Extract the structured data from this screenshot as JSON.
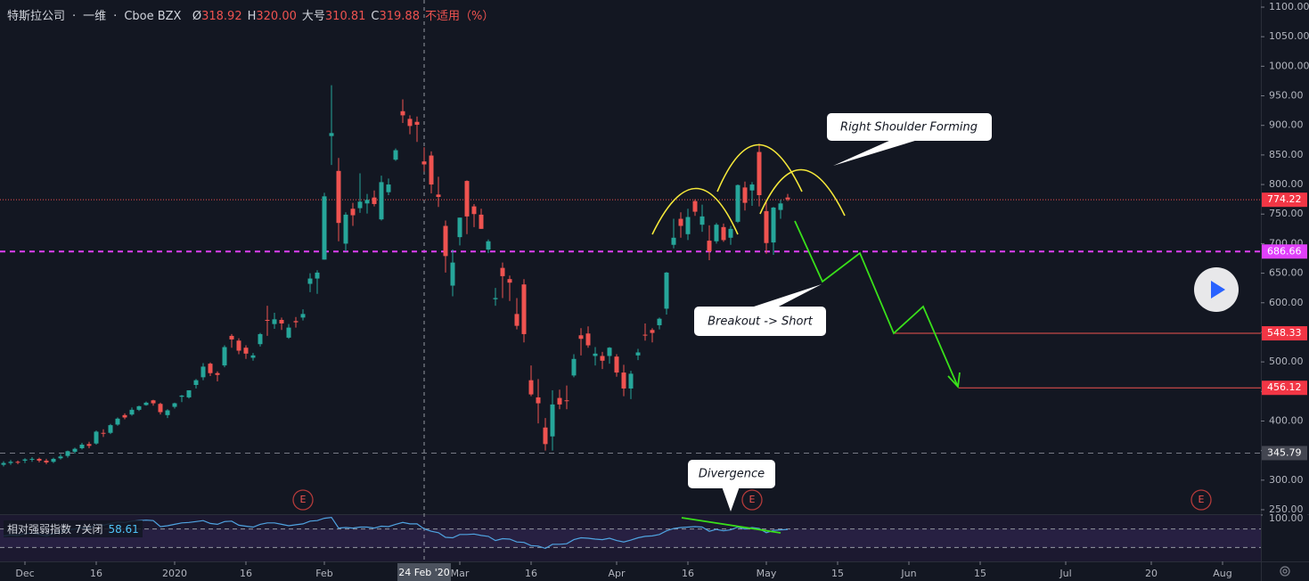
{
  "header": {
    "symbol": "特斯拉公司",
    "interval": "一维",
    "exchange": "Cboe BZX",
    "o_label": "Ø",
    "o": "318.92",
    "h_label": "H",
    "h": "320.00",
    "l_label": "大号",
    "l": "310.81",
    "c_label": "C",
    "c": "319.88",
    "change": "不适用（%）"
  },
  "chart_data": {
    "type": "candlestick",
    "up_color": "#26a69a",
    "down_color": "#ef5350",
    "ylim": [
      250,
      1100
    ],
    "yticks": [
      {
        "value": 1100,
        "label": "1100.00"
      },
      {
        "value": 1050,
        "label": "1050.00"
      },
      {
        "value": 1000,
        "label": "1000.00"
      },
      {
        "value": 950,
        "label": "950.00"
      },
      {
        "value": 900,
        "label": "900.00"
      },
      {
        "value": 850,
        "label": "850.00"
      },
      {
        "value": 800,
        "label": "800.00"
      },
      {
        "value": 750,
        "label": "750.00"
      },
      {
        "value": 700,
        "label": "700.00"
      },
      {
        "value": 650,
        "label": "650.00"
      },
      {
        "value": 600,
        "label": "600.00"
      },
      {
        "value": 550,
        "label": "550.00"
      },
      {
        "value": 500,
        "label": "500.00"
      },
      {
        "value": 450,
        "label": "450.00"
      },
      {
        "value": 400,
        "label": "400.00"
      },
      {
        "value": 350,
        "label": "350.00"
      },
      {
        "value": 300,
        "label": "300.00"
      },
      {
        "value": 250,
        "label": "250.00"
      }
    ],
    "xlim": [
      -0.5,
      176.375
    ],
    "xticks": [
      {
        "value": 3,
        "label": "Dec"
      },
      {
        "value": 13,
        "label": "16"
      },
      {
        "value": 24,
        "label": "2020"
      },
      {
        "value": 34,
        "label": "16"
      },
      {
        "value": 45,
        "label": "Feb"
      },
      {
        "value": 64,
        "label": "Mar"
      },
      {
        "value": 74,
        "label": "16"
      },
      {
        "value": 86,
        "label": "Apr"
      },
      {
        "value": 96,
        "label": "16"
      },
      {
        "value": 107,
        "label": "May"
      },
      {
        "value": 117,
        "label": "15"
      },
      {
        "value": 127,
        "label": "Jun"
      },
      {
        "value": 137,
        "label": "15"
      },
      {
        "value": 149,
        "label": "Jul"
      },
      {
        "value": 161,
        "label": "20"
      },
      {
        "value": 171,
        "label": "Aug"
      }
    ],
    "crosshair": {
      "value": 59,
      "label": "24 Feb '20"
    },
    "candles": [
      [
        326,
        332,
        323,
        329
      ],
      [
        329,
        334,
        326,
        331
      ],
      [
        331,
        333,
        327,
        330
      ],
      [
        333,
        337,
        329,
        335
      ],
      [
        335,
        339,
        331,
        336
      ],
      [
        336,
        338,
        330,
        333
      ],
      [
        333,
        336,
        327,
        330
      ],
      [
        331,
        338,
        329,
        336
      ],
      [
        337,
        344,
        335,
        340
      ],
      [
        341,
        350,
        338,
        349
      ],
      [
        348,
        355,
        345,
        353
      ],
      [
        354,
        363,
        352,
        360
      ],
      [
        361,
        365,
        354,
        358
      ],
      [
        362,
        384,
        360,
        382
      ],
      [
        380,
        386,
        373,
        379
      ],
      [
        380,
        395,
        378,
        393
      ],
      [
        394,
        406,
        392,
        404
      ],
      [
        410,
        413,
        403,
        406
      ],
      [
        411,
        423,
        409,
        419
      ],
      [
        419,
        426,
        417,
        425
      ],
      [
        427,
        433,
        426,
        431
      ],
      [
        435,
        436,
        426,
        430
      ],
      [
        429,
        431,
        411,
        415
      ],
      [
        410,
        420,
        405,
        418
      ],
      [
        424,
        431,
        421,
        430
      ],
      [
        441,
        444,
        432,
        443
      ],
      [
        440,
        452,
        438,
        452
      ],
      [
        461,
        471,
        455,
        469
      ],
      [
        474,
        498,
        469,
        492
      ],
      [
        497,
        499,
        476,
        481
      ],
      [
        481,
        484,
        467,
        478
      ],
      [
        494,
        528,
        491,
        525
      ],
      [
        544,
        547,
        524,
        538
      ],
      [
        536,
        540,
        513,
        519
      ],
      [
        524,
        528,
        505,
        514
      ],
      [
        507,
        515,
        502,
        511
      ],
      [
        530,
        549,
        526,
        547
      ],
      [
        571,
        595,
        544,
        570
      ],
      [
        564,
        583,
        556,
        572
      ],
      [
        571,
        575,
        554,
        565
      ],
      [
        541,
        564,
        539,
        558
      ],
      [
        569,
        576,
        558,
        567
      ],
      [
        575,
        589,
        570,
        581
      ],
      [
        632,
        650,
        618,
        641
      ],
      [
        641,
        655,
        615,
        651
      ],
      [
        673,
        786,
        673,
        780
      ],
      [
        882,
        968,
        833,
        887
      ],
      [
        823,
        845,
        704,
        735
      ],
      [
        700,
        753,
        687,
        749
      ],
      [
        759,
        769,
        730,
        748
      ],
      [
        760,
        819,
        752,
        771
      ],
      [
        768,
        784,
        751,
        774
      ],
      [
        778,
        790,
        763,
        767
      ],
      [
        741,
        815,
        739,
        804
      ],
      [
        787,
        810,
        782,
        800
      ],
      [
        842,
        861,
        840,
        858
      ],
      [
        924,
        944,
        904,
        917
      ],
      [
        911,
        917,
        885,
        899
      ],
      [
        906,
        915,
        872,
        901
      ],
      [
        839,
        863,
        822,
        834
      ],
      [
        849,
        856,
        785,
        800
      ],
      [
        783,
        813,
        762,
        779
      ],
      [
        730,
        739,
        651,
        679
      ],
      [
        629,
        690,
        611,
        668
      ],
      [
        711,
        744,
        697,
        744
      ],
      [
        806,
        807,
        716,
        746
      ],
      [
        763,
        767,
        728,
        750
      ],
      [
        749,
        759,
        725,
        725
      ],
      [
        690,
        707,
        684,
        704
      ],
      [
        606,
        625,
        595,
        608
      ],
      [
        659,
        668,
        608,
        645
      ],
      [
        640,
        646,
        603,
        634
      ],
      [
        581,
        608,
        555,
        561
      ],
      [
        631,
        640,
        533,
        547
      ],
      [
        469,
        494,
        442,
        445
      ],
      [
        440,
        471,
        396,
        430
      ],
      [
        389,
        405,
        350,
        361
      ],
      [
        374,
        452,
        350,
        428
      ],
      [
        439,
        453,
        420,
        428
      ],
      [
        435,
        460,
        420,
        434
      ],
      [
        477,
        513,
        474,
        505
      ],
      [
        545,
        557,
        511,
        539
      ],
      [
        548,
        560,
        524,
        528
      ],
      [
        510,
        525,
        494,
        514
      ],
      [
        510,
        517,
        488,
        502
      ],
      [
        510,
        525,
        497,
        524
      ],
      [
        509,
        513,
        475,
        482
      ],
      [
        482,
        495,
        442,
        455
      ],
      [
        455,
        485,
        437,
        480
      ],
      [
        511,
        522,
        503,
        516
      ],
      [
        546,
        565,
        536,
        545
      ],
      [
        554,
        557,
        533,
        549
      ],
      [
        562,
        575,
        555,
        573
      ],
      [
        590,
        652,
        580,
        651
      ],
      [
        698,
        742,
        692,
        710
      ],
      [
        742,
        753,
        710,
        730
      ],
      [
        716,
        759,
        706,
        745
      ],
      [
        772,
        775,
        747,
        754
      ],
      [
        732,
        766,
        720,
        746
      ],
      [
        705,
        731,
        672,
        687
      ],
      [
        704,
        735,
        700,
        732
      ],
      [
        728,
        734,
        703,
        706
      ],
      [
        710,
        730,
        698,
        725
      ],
      [
        737,
        800,
        735,
        799
      ],
      [
        795,
        805,
        756,
        769
      ],
      [
        790,
        804,
        764,
        800
      ],
      [
        855,
        869,
        763,
        782
      ],
      [
        755,
        773,
        683,
        701
      ],
      [
        702,
        762,
        681,
        761
      ],
      [
        757,
        774,
        742,
        768
      ],
      [
        778,
        784,
        772,
        775
      ]
    ],
    "levels": [
      {
        "value": 774.22,
        "color": "#ef5350",
        "style": "dotted",
        "from": -0.5,
        "box": "#f23645"
      },
      {
        "value": 686.66,
        "color": "#e040fb",
        "style": "dashed",
        "from": -0.5,
        "box": "#e040fb"
      },
      {
        "value": 548.33,
        "color": "#ef5350",
        "style": "solid",
        "from": 125,
        "box": "#f23645"
      },
      {
        "value": 456.12,
        "color": "#ef5350",
        "style": "solid",
        "from": 134,
        "box": "#f23645"
      },
      {
        "value": 345.79,
        "color": "#787b86",
        "style": "dashed",
        "from": -0.5,
        "box": "#434651"
      }
    ],
    "events": [
      {
        "x": 42,
        "label": "E"
      },
      {
        "x": 105,
        "label": "E"
      },
      {
        "x": 168,
        "label": "E"
      }
    ],
    "annotations": [
      "Right Shoulder Forming",
      "Breakout -> Short",
      "Divergence"
    ],
    "rsi": {
      "name": "相对强弱指数 7关闭",
      "last": 58.61,
      "color": "#4fa3e0",
      "ylim": [
        0,
        100
      ],
      "yticks": [
        {
          "value": 100,
          "label": "100.00"
        }
      ],
      "bands": [
        30,
        70
      ],
      "values": [
        55,
        57,
        56,
        60,
        61,
        58,
        55,
        60,
        63,
        68,
        70,
        73,
        71,
        80,
        78,
        82,
        85,
        84,
        87,
        88,
        89,
        88,
        75,
        77,
        80,
        83,
        84,
        86,
        88,
        82,
        80,
        86,
        87,
        78,
        76,
        74,
        80,
        83,
        83,
        80,
        77,
        79,
        81,
        87,
        88,
        93,
        95,
        72,
        73,
        72,
        74,
        74,
        72,
        76,
        75,
        80,
        84,
        81,
        81,
        70,
        65,
        62,
        52,
        51,
        58,
        58,
        59,
        56,
        54,
        45,
        49,
        48,
        42,
        41,
        34,
        33,
        28,
        37,
        37,
        38,
        47,
        51,
        50,
        48,
        47,
        50,
        45,
        42,
        46,
        51,
        54,
        55,
        58,
        66,
        71,
        73,
        74,
        75,
        74,
        65,
        69,
        66,
        68,
        74,
        70,
        73,
        71,
        62,
        67,
        68,
        69
      ]
    }
  }
}
